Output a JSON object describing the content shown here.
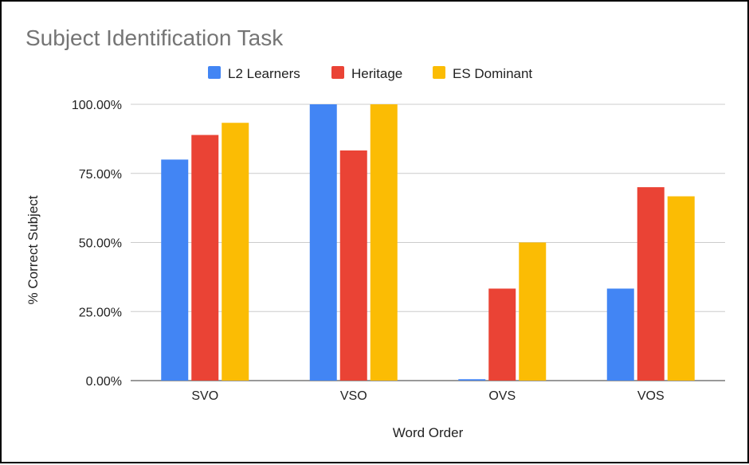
{
  "chart_data": {
    "type": "bar",
    "title": "Subject Identification Task",
    "xlabel": "Word Order",
    "ylabel": "% Correct Subject",
    "categories": [
      "SVO",
      "VSO",
      "OVS",
      "VOS"
    ],
    "series": [
      {
        "name": "L2 Learners",
        "color": "#4285F4",
        "values": [
          80.0,
          100.0,
          0.5,
          33.3
        ]
      },
      {
        "name": "Heritage",
        "color": "#EA4335",
        "values": [
          88.9,
          83.3,
          33.3,
          70.0
        ]
      },
      {
        "name": "ES Dominant",
        "color": "#FBBC04",
        "values": [
          93.3,
          100.0,
          50.0,
          66.7
        ]
      }
    ],
    "ylim": [
      0,
      100
    ],
    "yticks": [
      "0.00%",
      "25.00%",
      "50.00%",
      "75.00%",
      "100.00%"
    ],
    "grid": true,
    "legend_position": "top"
  }
}
